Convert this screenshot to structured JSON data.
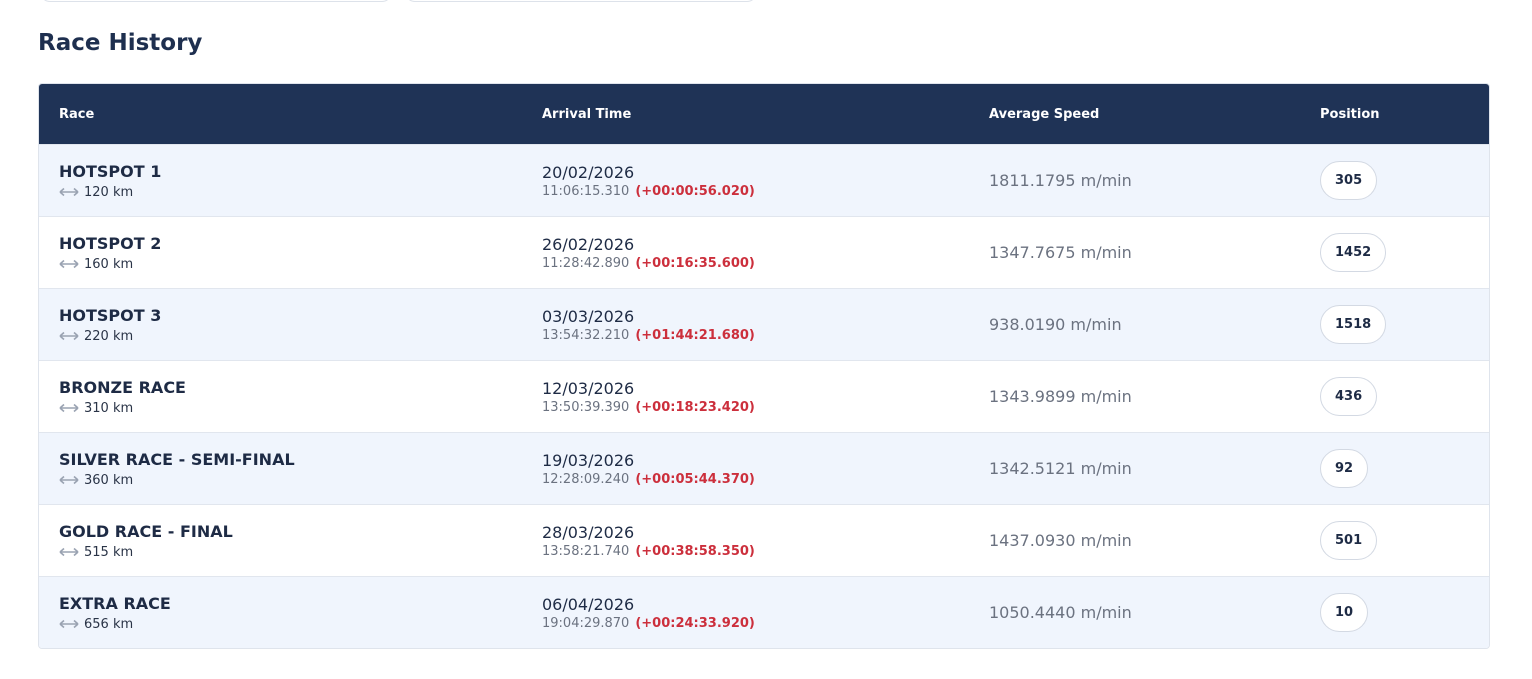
{
  "header": {
    "title": "Race History"
  },
  "table": {
    "columns": [
      "Race",
      "Arrival Time",
      "Average Speed",
      "Position"
    ],
    "rows": [
      {
        "race": "HOTSPOT 1",
        "distance": "120 km",
        "date": "20/02/2026",
        "time": "11:06:15.310",
        "gap": "(+00:00:56.020)",
        "speed": "1811.1795 m/min",
        "position": "305"
      },
      {
        "race": "HOTSPOT 2",
        "distance": "160 km",
        "date": "26/02/2026",
        "time": "11:28:42.890",
        "gap": "(+00:16:35.600)",
        "speed": "1347.7675 m/min",
        "position": "1452"
      },
      {
        "race": "HOTSPOT 3",
        "distance": "220 km",
        "date": "03/03/2026",
        "time": "13:54:32.210",
        "gap": "(+01:44:21.680)",
        "speed": "938.0190 m/min",
        "position": "1518"
      },
      {
        "race": "BRONZE RACE",
        "distance": "310 km",
        "date": "12/03/2026",
        "time": "13:50:39.390",
        "gap": "(+00:18:23.420)",
        "speed": "1343.9899 m/min",
        "position": "436"
      },
      {
        "race": "SILVER RACE - SEMI-FINAL",
        "distance": "360 km",
        "date": "19/03/2026",
        "time": "12:28:09.240",
        "gap": "(+00:05:44.370)",
        "speed": "1342.5121 m/min",
        "position": "92"
      },
      {
        "race": "GOLD RACE - FINAL",
        "distance": "515 km",
        "date": "28/03/2026",
        "time": "13:58:21.740",
        "gap": "(+00:38:58.350)",
        "speed": "1437.0930 m/min",
        "position": "501"
      },
      {
        "race": "EXTRA RACE",
        "distance": "656 km",
        "date": "06/04/2026",
        "time": "19:04:29.870",
        "gap": "(+00:24:33.920)",
        "speed": "1050.4440 m/min",
        "position": "10"
      }
    ]
  }
}
